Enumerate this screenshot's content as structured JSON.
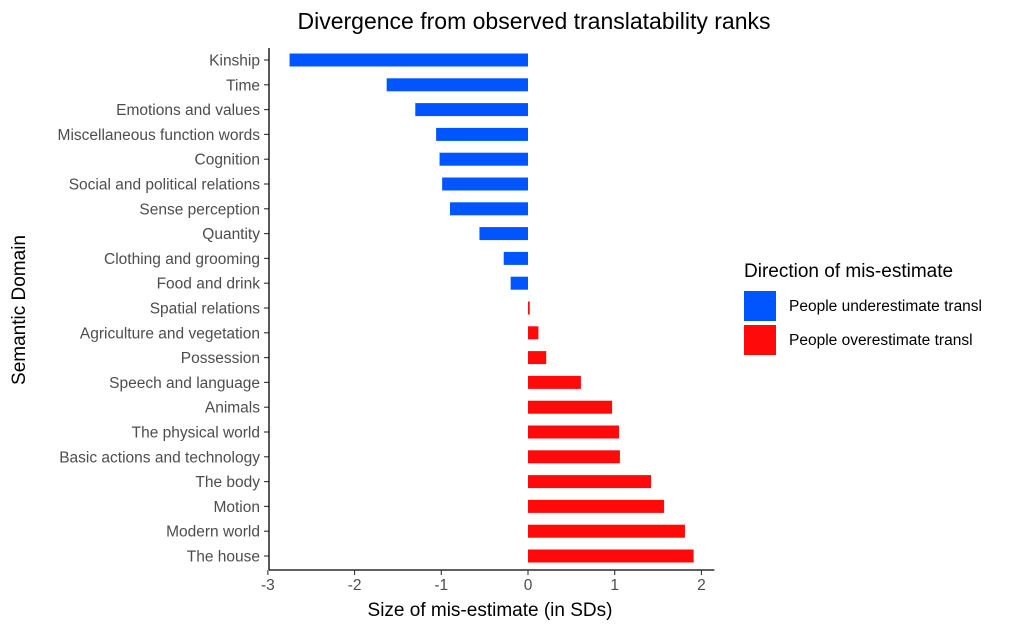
{
  "chart_data": {
    "type": "bar",
    "orientation": "horizontal",
    "title": "Divergence from observed translatability ranks",
    "xlabel": "Size of mis-estimate (in SDs)",
    "ylabel": "Semantic Domain",
    "xlim": [
      -3,
      2.15
    ],
    "xticks": [
      -3,
      -2,
      -1,
      0,
      1,
      2
    ],
    "xtick_labels": [
      "-3",
      "-2",
      "-1",
      "0",
      "1",
      "2"
    ],
    "grid": false,
    "categories": [
      "Kinship",
      "Time",
      "Emotions and values",
      "Miscellaneous function words",
      "Cognition",
      "Social and political relations",
      "Sense perception",
      "Quantity",
      "Clothing and grooming",
      "Food and drink",
      "Spatial relations",
      "Agriculture and vegetation",
      "Possession",
      "Speech and language",
      "Animals",
      "The physical world",
      "Basic actions and technology",
      "The body",
      "Motion",
      "Modern world",
      "The house"
    ],
    "values": [
      -2.75,
      -1.63,
      -1.3,
      -1.06,
      -1.02,
      -0.99,
      -0.9,
      -0.56,
      -0.28,
      -0.2,
      0.02,
      0.12,
      0.21,
      0.61,
      0.97,
      1.05,
      1.06,
      1.42,
      1.57,
      1.81,
      1.91
    ],
    "legend": {
      "title": "Direction of mis-estimate",
      "position": "right",
      "entries": [
        {
          "label": "People underestimate transl",
          "color": "#0055ff"
        },
        {
          "label": "People overestimate transl",
          "color": "#ff0a0a"
        }
      ]
    },
    "colors": {
      "negative": "#0055ff",
      "positive": "#ff0a0a"
    }
  }
}
